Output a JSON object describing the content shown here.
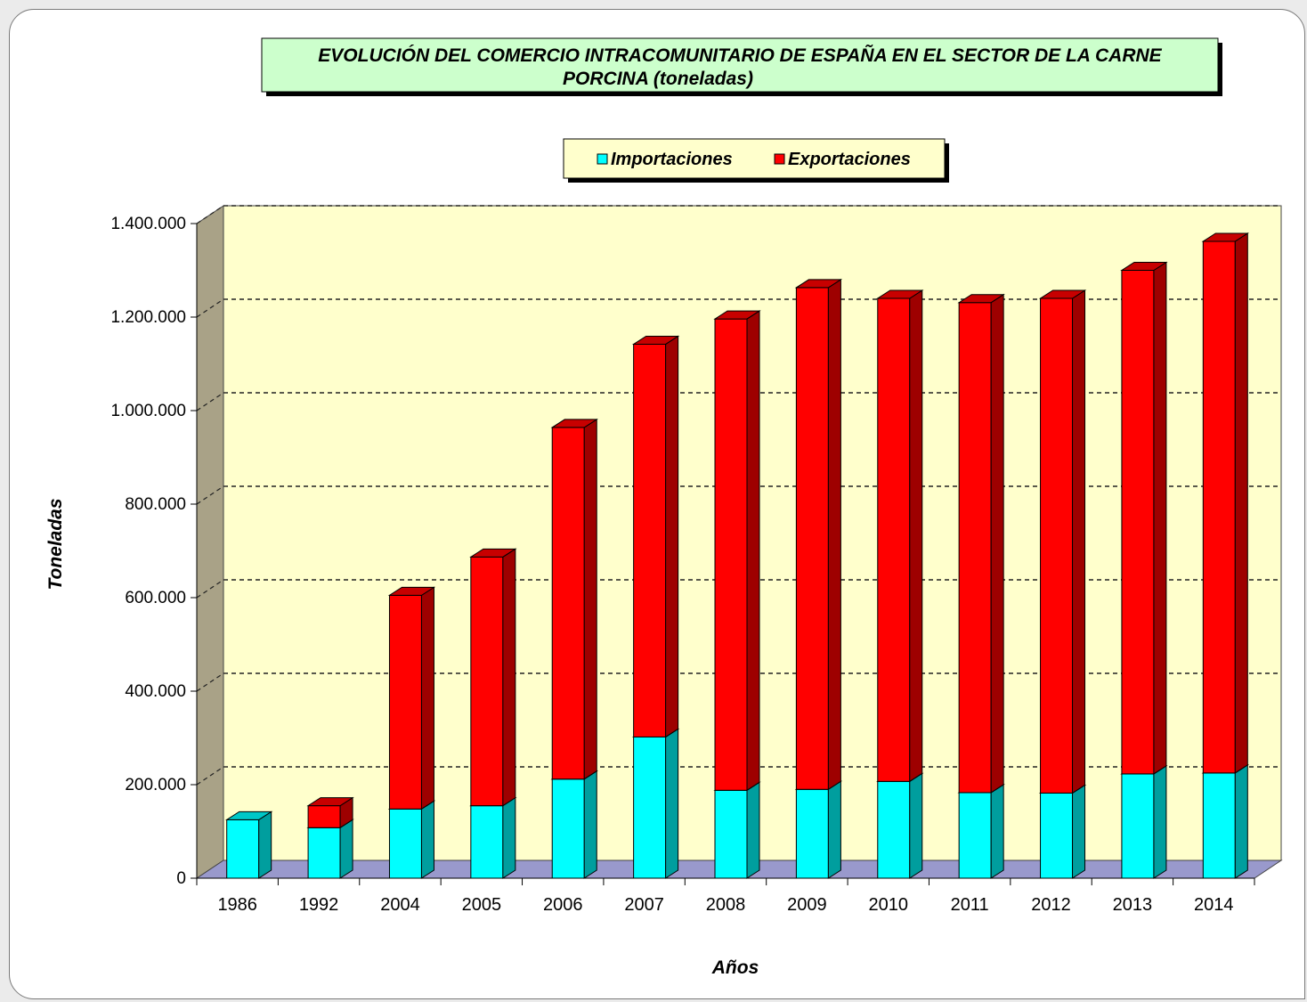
{
  "chart_data": {
    "type": "bar",
    "stacked": true,
    "three_d": true,
    "title": "EVOLUCIÓN DEL COMERCIO INTRACOMUNITARIO DE ESPAÑA EN EL SECTOR DE LA CARNE PORCINA (toneladas)",
    "title_lines": [
      "EVOLUCIÓN DEL COMERCIO INTRACOMUNITARIO DE ESPAÑA EN EL SECTOR DE LA CARNE",
      "PORCINA (toneladas)"
    ],
    "xlabel": "Años",
    "ylabel": "Toneladas",
    "ylim": [
      0,
      1400000
    ],
    "yticks": [
      0,
      200000,
      400000,
      600000,
      800000,
      1000000,
      1200000,
      1400000
    ],
    "ytick_labels": [
      "0",
      "200.000",
      "400.000",
      "600.000",
      "800.000",
      "1.000.000",
      "1.200.000",
      "1.400.000"
    ],
    "grid": true,
    "legend_position": "top-center",
    "categories": [
      "1986",
      "1992",
      "2004",
      "2005",
      "2006",
      "2007",
      "2008",
      "2009",
      "2010",
      "2011",
      "2012",
      "2013",
      "2014"
    ],
    "series": [
      {
        "name": "Importaciones",
        "color": "#00ffff",
        "values": [
          125000,
          108000,
          148000,
          155000,
          212000,
          302000,
          188000,
          190000,
          207000,
          183000,
          182000,
          223000,
          225000
        ]
      },
      {
        "name": "Exportaciones",
        "color": "#ff0000",
        "values": [
          0,
          47000,
          457000,
          532000,
          752000,
          840000,
          1008000,
          1073000,
          1033000,
          1048000,
          1058000,
          1077000,
          1137000
        ]
      }
    ]
  },
  "colors": {
    "back_wall": "#ffffcc",
    "side_wall": "#a9a287",
    "floor": "#9999cc",
    "title_bg": "#ccffcc",
    "legend_bg": "#ffffcc"
  }
}
